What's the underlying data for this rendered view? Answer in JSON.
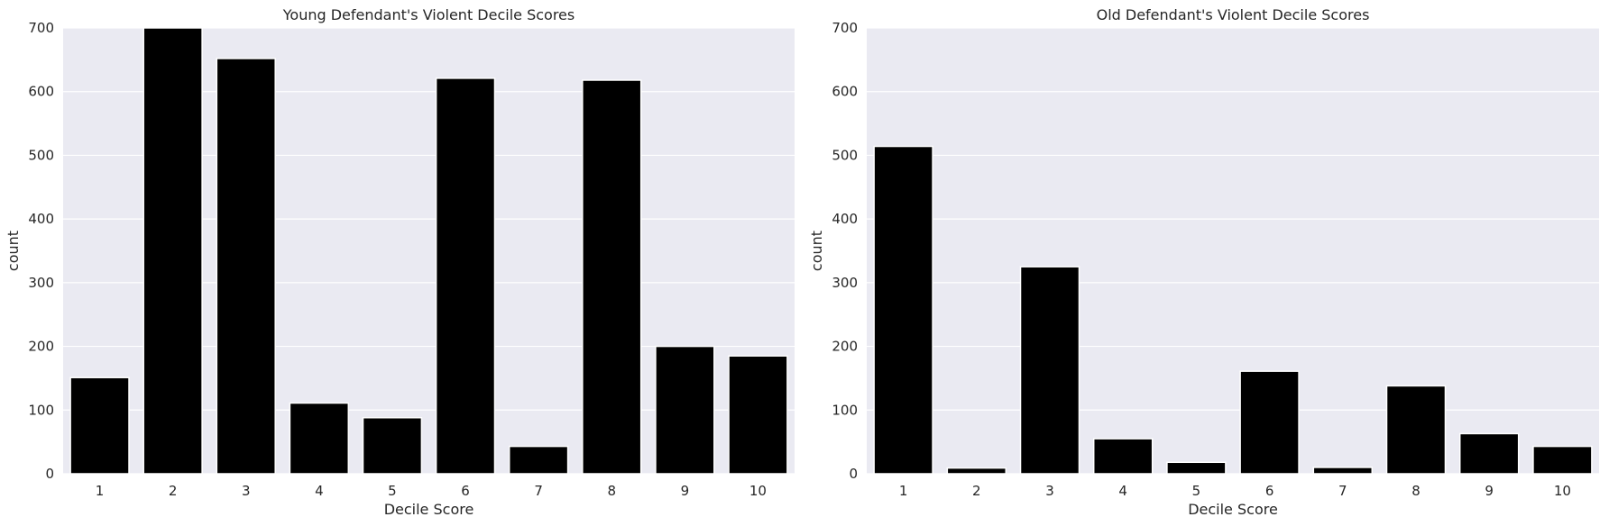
{
  "chart_data": [
    {
      "type": "bar",
      "title": "Young Defendant's Violent Decile Scores",
      "xlabel": "Decile Score",
      "ylabel": "count",
      "categories": [
        "1",
        "2",
        "3",
        "4",
        "5",
        "6",
        "7",
        "8",
        "9",
        "10"
      ],
      "values": [
        151,
        702,
        652,
        111,
        88,
        621,
        43,
        618,
        200,
        185
      ],
      "ylim": [
        0,
        700
      ],
      "yticks": [
        0,
        100,
        200,
        300,
        400,
        500,
        600,
        700
      ],
      "grid": true,
      "bar_color": "#000000",
      "background_color": "#eaeaf2"
    },
    {
      "type": "bar",
      "title": "Old Defendant's Violent Decile Scores",
      "xlabel": "Decile Score",
      "ylabel": "count",
      "categories": [
        "1",
        "2",
        "3",
        "4",
        "5",
        "6",
        "7",
        "8",
        "9",
        "10"
      ],
      "values": [
        514,
        9,
        325,
        55,
        18,
        161,
        10,
        138,
        63,
        43
      ],
      "ylim": [
        0,
        700
      ],
      "yticks": [
        0,
        100,
        200,
        300,
        400,
        500,
        600,
        700
      ],
      "grid": true,
      "bar_color": "#000000",
      "background_color": "#eaeaf2"
    }
  ]
}
